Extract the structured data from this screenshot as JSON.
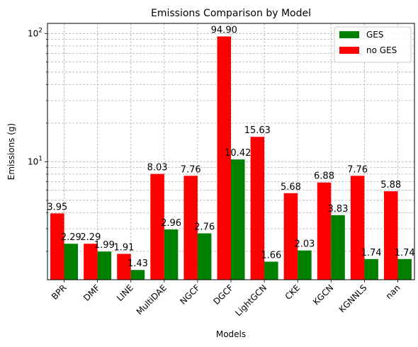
{
  "chart_data": {
    "type": "bar",
    "title": "Emissions Comparison by Model",
    "xlabel": "Models",
    "ylabel": "Emissions (g)",
    "yscale": "log",
    "ylim": [
      1.2,
      120
    ],
    "y_ticks": [
      {
        "value": 10,
        "base": "10",
        "exp": "1"
      },
      {
        "value": 100,
        "base": "10",
        "exp": "2"
      }
    ],
    "grid": true,
    "legend_position": "top-right",
    "categories": [
      "BPR",
      "DMF",
      "LINE",
      "MultiDAE",
      "NGCF",
      "DGCF",
      "LightGCN",
      "CKE",
      "KGCN",
      "KGNNLS",
      "nan"
    ],
    "series": [
      {
        "name": "no GES",
        "color": "#ff0000",
        "values": [
          3.95,
          2.29,
          1.91,
          8.03,
          7.76,
          94.9,
          15.63,
          5.68,
          6.88,
          7.76,
          5.88
        ],
        "labels": [
          "3.95",
          "2.29",
          "1.91",
          "8.03",
          "7.76",
          "94.90",
          "15.63",
          "5.68",
          "6.88",
          "7.76",
          "5.88"
        ]
      },
      {
        "name": "GES",
        "color": "#008000",
        "values": [
          2.29,
          1.99,
          1.43,
          2.96,
          2.76,
          10.42,
          1.66,
          2.03,
          3.83,
          1.74,
          1.74
        ],
        "labels": [
          "2.29",
          "1.99",
          "1.43",
          "2.96",
          "2.76",
          "10.42",
          "1.66",
          "2.03",
          "3.83",
          "1.74",
          "1.74"
        ]
      }
    ],
    "legend": [
      {
        "name": "GES",
        "color": "#008000"
      },
      {
        "name": "no GES",
        "color": "#ff0000"
      }
    ]
  }
}
